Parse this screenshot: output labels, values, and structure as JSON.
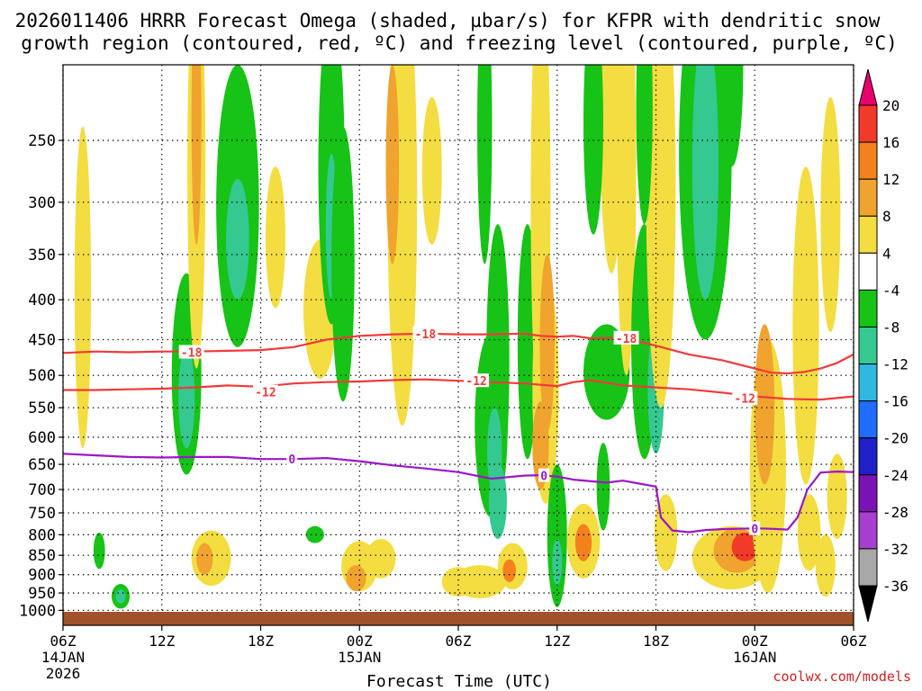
{
  "chart_data": {
    "type": "heatmap",
    "title_line1": "2026011406 HRRR Forecast Omega (shaded, µbar/s) for KFPR with dendritic snow",
    "title_line2": "growth region (contoured, red, ºC) and freezing level (contoured, purple, ºC)",
    "xlabel": "Forecast Time (UTC)",
    "watermark": "coolwx.com/models",
    "x_ticks": [
      {
        "hours": 0,
        "label": "06Z",
        "sub1": "14JAN",
        "sub2": "2026"
      },
      {
        "hours": 6,
        "label": "12Z",
        "sub1": "",
        "sub2": ""
      },
      {
        "hours": 12,
        "label": "18Z",
        "sub1": "",
        "sub2": ""
      },
      {
        "hours": 18,
        "label": "00Z",
        "sub1": "15JAN",
        "sub2": ""
      },
      {
        "hours": 24,
        "label": "06Z",
        "sub1": "",
        "sub2": ""
      },
      {
        "hours": 30,
        "label": "12Z",
        "sub1": "",
        "sub2": ""
      },
      {
        "hours": 36,
        "label": "18Z",
        "sub1": "",
        "sub2": ""
      },
      {
        "hours": 42,
        "label": "00Z",
        "sub1": "16JAN",
        "sub2": ""
      },
      {
        "hours": 48,
        "label": "06Z",
        "sub1": "",
        "sub2": ""
      }
    ],
    "xlim_hours": [
      0,
      48
    ],
    "y_levels_hpa": [
      250,
      300,
      350,
      400,
      450,
      500,
      550,
      600,
      650,
      700,
      750,
      800,
      850,
      900,
      950,
      1000
    ],
    "ylim_hpa": [
      200,
      1015
    ],
    "colorbar": {
      "labels": [
        "20",
        "16",
        "12",
        "8",
        "4",
        "-4",
        "-8",
        "-12",
        "-16",
        "-20",
        "-24",
        "-28",
        "-32",
        "-36"
      ],
      "colors": [
        "#e8006e",
        "#f23a2a",
        "#f3821e",
        "#f0a32e",
        "#f3dd40",
        "#ffffff",
        "#16c316",
        "#35c890",
        "#2fb8e0",
        "#1f6eff",
        "#2020c8",
        "#7a12b4",
        "#a63fd0",
        "#a8a8a8",
        "#000000"
      ]
    },
    "omega_blobs": [
      {
        "t": 1.2,
        "p": 430,
        "dt": 0.5,
        "dp": 190,
        "v": 5
      },
      {
        "t": 2.2,
        "p": 840,
        "dt": 0.35,
        "dp": 45,
        "v": -7
      },
      {
        "t": 3.5,
        "p": 960,
        "dt": 0.55,
        "dp": 35,
        "v": -8
      },
      {
        "t": 3.5,
        "p": 960,
        "dt": 0.3,
        "dp": 20,
        "v": -14
      },
      {
        "t": 7.5,
        "p": 520,
        "dt": 0.9,
        "dp": 150,
        "v": -9
      },
      {
        "t": 7.5,
        "p": 540,
        "dt": 0.5,
        "dp": 80,
        "v": -12
      },
      {
        "t": 8.1,
        "p": 290,
        "dt": 0.55,
        "dp": 200,
        "v": 6
      },
      {
        "t": 8.1,
        "p": 250,
        "dt": 0.3,
        "dp": 90,
        "v": 9
      },
      {
        "t": 9.0,
        "p": 860,
        "dt": 1.2,
        "dp": 70,
        "v": 6
      },
      {
        "t": 8.6,
        "p": 860,
        "dt": 0.5,
        "dp": 40,
        "v": 11
      },
      {
        "t": 10.6,
        "p": 330,
        "dt": 1.3,
        "dp": 130,
        "v": -9
      },
      {
        "t": 10.6,
        "p": 340,
        "dt": 0.7,
        "dp": 60,
        "v": -13
      },
      {
        "t": 12.9,
        "p": 340,
        "dt": 0.6,
        "dp": 70,
        "v": 5
      },
      {
        "t": 15.6,
        "p": 420,
        "dt": 1.0,
        "dp": 85,
        "v": 6
      },
      {
        "t": 15.3,
        "p": 800,
        "dt": 0.55,
        "dp": 20,
        "v": -8
      },
      {
        "t": 16.3,
        "p": 300,
        "dt": 0.8,
        "dp": 130,
        "v": -9
      },
      {
        "t": 16.3,
        "p": 330,
        "dt": 0.35,
        "dp": 70,
        "v": -13
      },
      {
        "t": 17.0,
        "p": 390,
        "dt": 0.7,
        "dp": 150,
        "v": -9
      },
      {
        "t": 18.0,
        "p": 880,
        "dt": 1.1,
        "dp": 65,
        "v": 6
      },
      {
        "t": 17.8,
        "p": 910,
        "dt": 0.6,
        "dp": 35,
        "v": 11
      },
      {
        "t": 19.3,
        "p": 860,
        "dt": 0.9,
        "dp": 50,
        "v": 5
      },
      {
        "t": 20.6,
        "p": 340,
        "dt": 0.9,
        "dp": 240,
        "v": 6
      },
      {
        "t": 20.0,
        "p": 280,
        "dt": 0.4,
        "dp": 80,
        "v": 9
      },
      {
        "t": 22.4,
        "p": 280,
        "dt": 0.6,
        "dp": 60,
        "v": 6
      },
      {
        "t": 24.0,
        "p": 920,
        "dt": 1.0,
        "dp": 40,
        "v": 6
      },
      {
        "t": 25.6,
        "p": 260,
        "dt": 0.45,
        "dp": 100,
        "v": -8
      },
      {
        "t": 26.0,
        "p": 600,
        "dt": 1.0,
        "dp": 160,
        "v": -9
      },
      {
        "t": 26.4,
        "p": 520,
        "dt": 0.7,
        "dp": 200,
        "v": -9
      },
      {
        "t": 26.2,
        "p": 630,
        "dt": 0.45,
        "dp": 80,
        "v": -13
      },
      {
        "t": 26.4,
        "p": 730,
        "dt": 0.55,
        "dp": 80,
        "v": -12
      },
      {
        "t": 25.3,
        "p": 920,
        "dt": 1.6,
        "dp": 45,
        "v": 6
      },
      {
        "t": 27.3,
        "p": 880,
        "dt": 0.9,
        "dp": 60,
        "v": 6
      },
      {
        "t": 27.1,
        "p": 890,
        "dt": 0.4,
        "dp": 30,
        "v": 12
      },
      {
        "t": 28.2,
        "p": 480,
        "dt": 0.6,
        "dp": 160,
        "v": -9
      },
      {
        "t": 29.0,
        "p": 370,
        "dt": 0.6,
        "dp": 220,
        "v": 6
      },
      {
        "t": 29.3,
        "p": 550,
        "dt": 0.8,
        "dp": 180,
        "v": 6
      },
      {
        "t": 29.4,
        "p": 470,
        "dt": 0.45,
        "dp": 120,
        "v": 9
      },
      {
        "t": 29.0,
        "p": 620,
        "dt": 0.5,
        "dp": 80,
        "v": 10
      },
      {
        "t": 30.0,
        "p": 820,
        "dt": 0.6,
        "dp": 170,
        "v": -9
      },
      {
        "t": 30.0,
        "p": 870,
        "dt": 0.3,
        "dp": 60,
        "v": -14
      },
      {
        "t": 31.6,
        "p": 820,
        "dt": 1.0,
        "dp": 90,
        "v": 6
      },
      {
        "t": 31.6,
        "p": 820,
        "dt": 0.5,
        "dp": 45,
        "v": 12
      },
      {
        "t": 33.0,
        "p": 500,
        "dt": 1.4,
        "dp": 70,
        "v": -9
      },
      {
        "t": 32.8,
        "p": 700,
        "dt": 0.4,
        "dp": 90,
        "v": -8
      },
      {
        "t": 33.3,
        "p": 230,
        "dt": 0.7,
        "dp": 140,
        "v": 6
      },
      {
        "t": 32.2,
        "p": 250,
        "dt": 0.6,
        "dp": 80,
        "v": -8
      },
      {
        "t": 34.2,
        "p": 300,
        "dt": 0.6,
        "dp": 200,
        "v": 6
      },
      {
        "t": 35.3,
        "p": 480,
        "dt": 0.8,
        "dp": 160,
        "v": -9
      },
      {
        "t": 36.0,
        "p": 530,
        "dt": 0.5,
        "dp": 100,
        "v": -13
      },
      {
        "t": 36.3,
        "p": 320,
        "dt": 0.9,
        "dp": 230,
        "v": 6
      },
      {
        "t": 35.3,
        "p": 240,
        "dt": 0.5,
        "dp": 80,
        "v": -9
      },
      {
        "t": 36.6,
        "p": 800,
        "dt": 0.7,
        "dp": 90,
        "v": 5
      },
      {
        "t": 39.0,
        "p": 250,
        "dt": 1.6,
        "dp": 200,
        "v": -9
      },
      {
        "t": 39.0,
        "p": 290,
        "dt": 0.8,
        "dp": 110,
        "v": -12
      },
      {
        "t": 39.2,
        "p": 300,
        "dt": 0.3,
        "dp": 40,
        "v": -15
      },
      {
        "t": 40.6,
        "p": 210,
        "dt": 0.7,
        "dp": 60,
        "v": -9
      },
      {
        "t": 40.6,
        "p": 860,
        "dt": 2.4,
        "dp": 80,
        "v": 6
      },
      {
        "t": 40.9,
        "p": 840,
        "dt": 1.4,
        "dp": 55,
        "v": 11
      },
      {
        "t": 41.4,
        "p": 830,
        "dt": 0.8,
        "dp": 35,
        "v": 16
      },
      {
        "t": 42.8,
        "p": 700,
        "dt": 1.1,
        "dp": 250,
        "v": 6
      },
      {
        "t": 42.6,
        "p": 560,
        "dt": 0.6,
        "dp": 130,
        "v": 9
      },
      {
        "t": 45.1,
        "p": 480,
        "dt": 0.8,
        "dp": 210,
        "v": 5
      },
      {
        "t": 45.3,
        "p": 800,
        "dt": 0.7,
        "dp": 90,
        "v": 6
      },
      {
        "t": 46.6,
        "p": 330,
        "dt": 0.6,
        "dp": 110,
        "v": 5
      },
      {
        "t": 46.3,
        "p": 880,
        "dt": 0.6,
        "dp": 80,
        "v": 6
      },
      {
        "t": 47.0,
        "p": 720,
        "dt": 0.6,
        "dp": 90,
        "v": 5
      }
    ],
    "contours": [
      {
        "name": "minus18",
        "color": "#f03a3a",
        "label": "-18",
        "label_positions": [
          {
            "t": 7.8,
            "p": 467
          },
          {
            "t": 22.0,
            "p": 442
          },
          {
            "t": 34.2,
            "p": 448
          }
        ],
        "points": [
          [
            0,
            468
          ],
          [
            2,
            466
          ],
          [
            4,
            467
          ],
          [
            6,
            466
          ],
          [
            8,
            466
          ],
          [
            10,
            465
          ],
          [
            12,
            464
          ],
          [
            14,
            460
          ],
          [
            16,
            450
          ],
          [
            18,
            445
          ],
          [
            20,
            443
          ],
          [
            22,
            442
          ],
          [
            24,
            443
          ],
          [
            26,
            443
          ],
          [
            28,
            442
          ],
          [
            29,
            445
          ],
          [
            30,
            446
          ],
          [
            31,
            445
          ],
          [
            32,
            448
          ],
          [
            34,
            448
          ],
          [
            36,
            458
          ],
          [
            38,
            470
          ],
          [
            40,
            478
          ],
          [
            42,
            490
          ],
          [
            43,
            496
          ],
          [
            44,
            497
          ],
          [
            45,
            495
          ],
          [
            46,
            490
          ],
          [
            47,
            482
          ],
          [
            48,
            470
          ]
        ]
      },
      {
        "name": "minus12",
        "color": "#f03a3a",
        "label": "-12",
        "label_positions": [
          {
            "t": 12.3,
            "p": 525
          },
          {
            "t": 25.1,
            "p": 508
          },
          {
            "t": 41.4,
            "p": 535
          }
        ],
        "points": [
          [
            0,
            522
          ],
          [
            2,
            522
          ],
          [
            4,
            521
          ],
          [
            6,
            520
          ],
          [
            8,
            518
          ],
          [
            10,
            515
          ],
          [
            12,
            517
          ],
          [
            14,
            512
          ],
          [
            16,
            510
          ],
          [
            18,
            509
          ],
          [
            20,
            507
          ],
          [
            22,
            506
          ],
          [
            24,
            508
          ],
          [
            26,
            510
          ],
          [
            28,
            512
          ],
          [
            30,
            516
          ],
          [
            31,
            510
          ],
          [
            32,
            507
          ],
          [
            34,
            515
          ],
          [
            36,
            518
          ],
          [
            38,
            521
          ],
          [
            40,
            526
          ],
          [
            42,
            532
          ],
          [
            44,
            536
          ],
          [
            46,
            537
          ],
          [
            48,
            532
          ]
        ]
      },
      {
        "name": "zero",
        "color": "#9a17c8",
        "label": "0",
        "label_positions": [
          {
            "t": 13.9,
            "p": 640
          },
          {
            "t": 29.2,
            "p": 672
          },
          {
            "t": 42.0,
            "p": 786
          }
        ],
        "points": [
          [
            0,
            630
          ],
          [
            2,
            633
          ],
          [
            4,
            636
          ],
          [
            6,
            637
          ],
          [
            8,
            636
          ],
          [
            10,
            636
          ],
          [
            12,
            640
          ],
          [
            14,
            640
          ],
          [
            16,
            638
          ],
          [
            18,
            644
          ],
          [
            20,
            652
          ],
          [
            22,
            658
          ],
          [
            24,
            665
          ],
          [
            26,
            678
          ],
          [
            28,
            672
          ],
          [
            29,
            671
          ],
          [
            30,
            674
          ],
          [
            31,
            680
          ],
          [
            33,
            686
          ],
          [
            34,
            682
          ],
          [
            35,
            688
          ],
          [
            36,
            694
          ],
          [
            36.3,
            760
          ],
          [
            37,
            790
          ],
          [
            38,
            794
          ],
          [
            39,
            789
          ],
          [
            40,
            787
          ],
          [
            41,
            786
          ],
          [
            42,
            785
          ],
          [
            43,
            786
          ],
          [
            44,
            788
          ],
          [
            44.6,
            760
          ],
          [
            45.2,
            700
          ],
          [
            46,
            666
          ],
          [
            47,
            664
          ],
          [
            48,
            665
          ]
        ]
      }
    ]
  }
}
